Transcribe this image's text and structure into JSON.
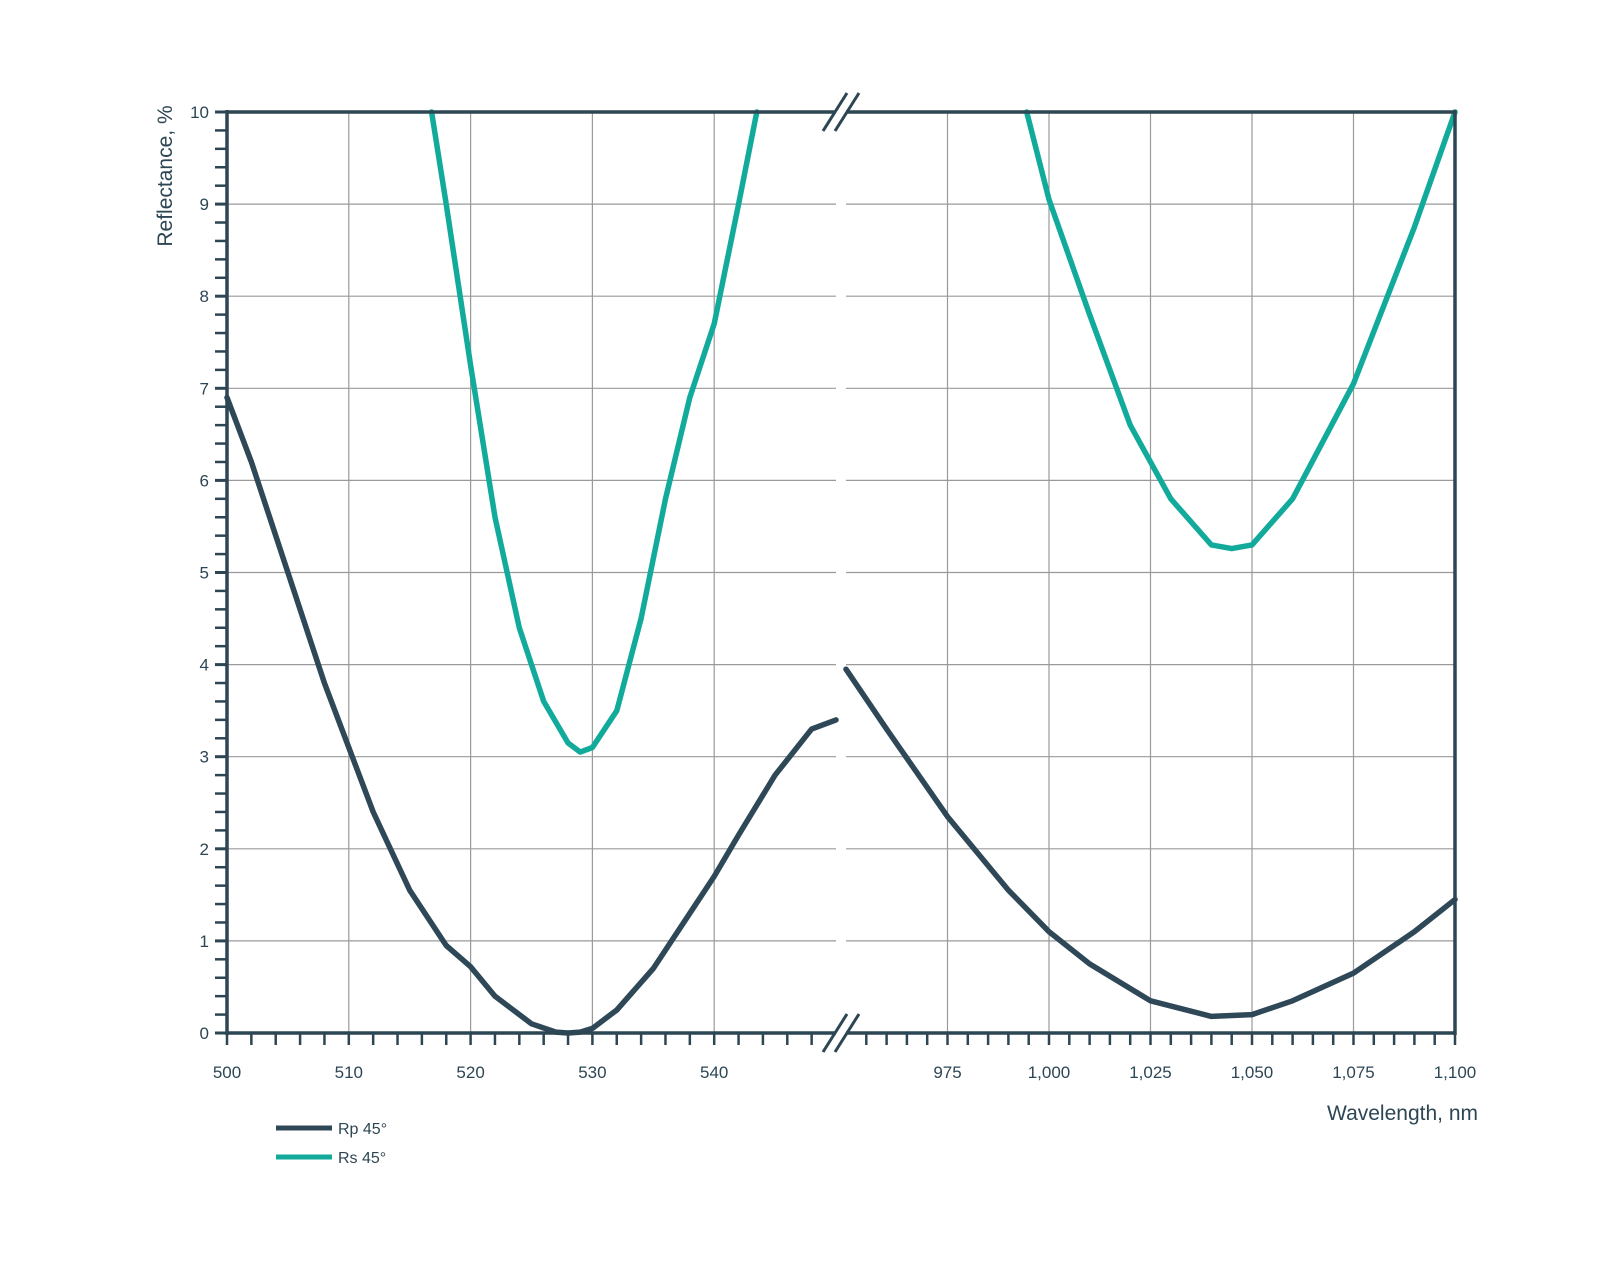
{
  "colors": {
    "axis": "#2d4654",
    "grid": "#9a9a9a",
    "rp": "#2f4858",
    "rs": "#12ab9b"
  },
  "chart_data": {
    "type": "line",
    "xlabel": "Wavelength, nm",
    "ylabel": "Reflectance, %",
    "ylim": [
      0,
      10
    ],
    "y_ticks": [
      "0",
      "1",
      "2",
      "3",
      "4",
      "5",
      "6",
      "7",
      "8",
      "9",
      "10"
    ],
    "broken_x_axis": true,
    "grid": true,
    "legend_position": "bottom-left",
    "left_panel": {
      "xlim": [
        500,
        550
      ],
      "x_ticks": [
        500,
        510,
        520,
        530,
        540
      ],
      "x_tick_labels": [
        "500",
        "510",
        "520",
        "530",
        "540"
      ]
    },
    "right_panel": {
      "xlim": [
        950,
        1100
      ],
      "x_ticks": [
        975,
        1000,
        1025,
        1050,
        1075,
        1100
      ],
      "x_tick_labels": [
        "975",
        "1,000",
        "1,025",
        "1,050",
        "1,075",
        "1,100"
      ]
    },
    "series": [
      {
        "name": "Rp 45°",
        "color": "#2f4858",
        "left": {
          "x": [
            500,
            502,
            505,
            508,
            510,
            512,
            515,
            518,
            520,
            522,
            525,
            527,
            528,
            529,
            530,
            532,
            535,
            538,
            540,
            542,
            545,
            548,
            550
          ],
          "y": [
            6.9,
            6.2,
            5.0,
            3.8,
            3.1,
            2.4,
            1.55,
            0.95,
            0.72,
            0.4,
            0.1,
            0.01,
            0.0,
            0.01,
            0.05,
            0.25,
            0.7,
            1.3,
            1.7,
            2.15,
            2.8,
            3.3,
            3.4
          ]
        },
        "right": {
          "x": [
            950,
            960,
            975,
            990,
            1000,
            1010,
            1025,
            1040,
            1050,
            1060,
            1075,
            1090,
            1100
          ],
          "y": [
            3.95,
            3.3,
            2.35,
            1.55,
            1.1,
            0.75,
            0.35,
            0.18,
            0.2,
            0.35,
            0.65,
            1.1,
            1.45
          ]
        }
      },
      {
        "name": "Rs 45°",
        "color": "#12ab9b",
        "left": {
          "x": [
            516.8,
            518,
            520,
            522,
            524,
            526,
            528,
            529,
            530,
            532,
            534,
            536,
            538,
            540,
            542,
            543.5
          ],
          "y": [
            10.0,
            9.0,
            7.25,
            5.6,
            4.4,
            3.6,
            3.15,
            3.05,
            3.1,
            3.5,
            4.5,
            5.8,
            6.9,
            7.7,
            9.0,
            10.0
          ]
        },
        "right": {
          "x": [
            994.5,
            1000,
            1010,
            1020,
            1030,
            1040,
            1045,
            1050,
            1060,
            1075,
            1090,
            1100
          ],
          "y": [
            10.0,
            9.05,
            7.8,
            6.6,
            5.8,
            5.3,
            5.26,
            5.3,
            5.8,
            7.05,
            8.75,
            10.0
          ]
        }
      }
    ]
  }
}
